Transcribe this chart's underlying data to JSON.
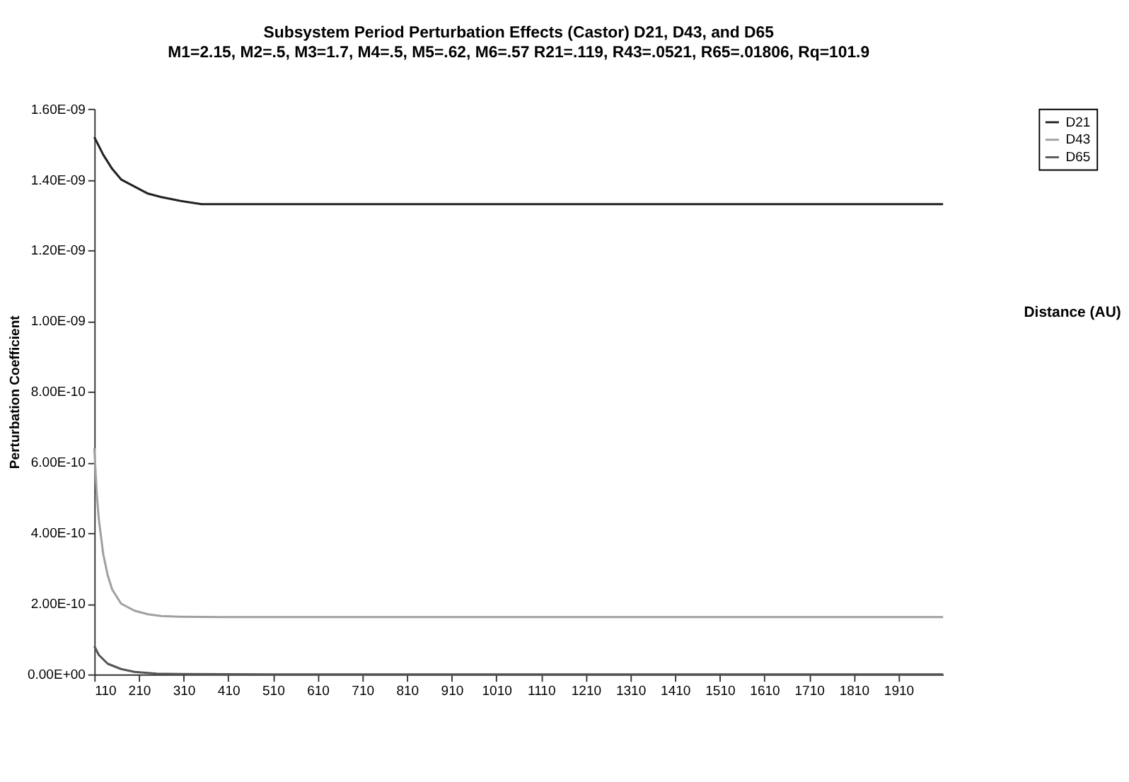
{
  "chart_data": {
    "type": "line",
    "title": "Subsystem Period Perturbation Effects (Castor)   D21, D43, and D65",
    "subtitle": "M1=2.15, M2=.5, M3=1.7, M4=.5, M5=.62, M6=.57   R21=.119, R43=.0521, R65=.01806, Rq=101.9",
    "annotations": [
      "Distance (AU)"
    ],
    "ylabel": "Perturbation Coefficient",
    "series": [
      {
        "name": "D21",
        "color": "#222222",
        "x": [
          110,
          130,
          150,
          170,
          200,
          230,
          260,
          300,
          350,
          400,
          500,
          700,
          1000,
          1500,
          2010
        ],
        "values": [
          1.52e-09,
          1.47e-09,
          1.43e-09,
          1.4e-09,
          1.38e-09,
          1.36e-09,
          1.35e-09,
          1.34e-09,
          1.33e-09,
          1.33e-09,
          1.33e-09,
          1.33e-09,
          1.33e-09,
          1.33e-09,
          1.33e-09
        ]
      },
      {
        "name": "D43",
        "color": "#a0a0a0",
        "x": [
          110,
          115,
          120,
          130,
          140,
          150,
          170,
          200,
          230,
          260,
          300,
          400,
          600,
          1000,
          2010
        ],
        "values": [
          6.4e-10,
          5.2e-10,
          4.4e-10,
          3.4e-10,
          2.8e-10,
          2.4e-10,
          2e-10,
          1.8e-10,
          1.7e-10,
          1.65e-10,
          1.63e-10,
          1.62e-10,
          1.62e-10,
          1.62e-10,
          1.62e-10
        ]
      },
      {
        "name": "D65",
        "color": "#555555",
        "x": [
          110,
          120,
          140,
          170,
          200,
          250,
          300,
          500,
          1000,
          2010
        ],
        "values": [
          8e-11,
          5.5e-11,
          3e-11,
          1.5e-11,
          7e-12,
          2e-12,
          1e-12,
          0,
          0,
          0
        ]
      }
    ],
    "xlim": [
      110,
      2010
    ],
    "xticks": [
      110,
      210,
      310,
      410,
      510,
      610,
      710,
      810,
      910,
      1010,
      1110,
      1210,
      1310,
      1410,
      1510,
      1610,
      1710,
      1810,
      1910
    ],
    "ylim": [
      0,
      1.6e-09
    ],
    "yticks": [
      {
        "value": 0,
        "label": "0.00E+00"
      },
      {
        "value": 2e-10,
        "label": "2.00E-10"
      },
      {
        "value": 4e-10,
        "label": "4.00E-10"
      },
      {
        "value": 6e-10,
        "label": "6.00E-10"
      },
      {
        "value": 8e-10,
        "label": "8.00E-10"
      },
      {
        "value": 1e-09,
        "label": "1.00E-09"
      },
      {
        "value": 1.2e-09,
        "label": "1.20E-09"
      },
      {
        "value": 1.4e-09,
        "label": "1.40E-09"
      },
      {
        "value": 1.6e-09,
        "label": "1.60E-09"
      }
    ],
    "grid": false,
    "legend": "right",
    "marker": "none",
    "line_style": "solid"
  }
}
